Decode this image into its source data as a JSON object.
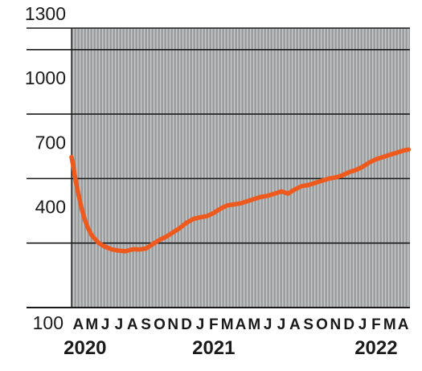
{
  "chart_data": {
    "type": "line",
    "title": "",
    "xlabel": "",
    "ylabel": "",
    "ylim": [
      100,
      1400
    ],
    "yticks": [
      100,
      400,
      700,
      1000,
      1300
    ],
    "grid": true,
    "background_color": "#9a9c9e",
    "vertical_stripe_color": "#c9cbcd",
    "line_color": "#ee5a1e",
    "month_labels": [
      "A",
      "M",
      "J",
      "J",
      "A",
      "S",
      "O",
      "N",
      "D",
      "J",
      "F",
      "M",
      "A",
      "M",
      "J",
      "J",
      "A",
      "S",
      "O",
      "N",
      "D",
      "J",
      "F",
      "M",
      "A"
    ],
    "year_labels": [
      {
        "text": "2020",
        "month_index": 0.5
      },
      {
        "text": "2021",
        "month_index": 10
      },
      {
        "text": "2022",
        "month_index": 22
      }
    ],
    "series": [
      {
        "x": [
          0,
          0.15,
          0.3,
          0.5,
          0.75,
          1,
          1.25,
          1.5,
          2,
          2.5,
          3,
          3.5,
          4,
          4.3,
          4.6,
          5,
          5.5,
          6,
          6.5,
          7,
          7.5,
          8,
          8.5,
          9,
          9.5,
          10,
          10.5,
          11,
          11.5,
          12,
          12.5,
          13,
          13.5,
          14,
          14.5,
          15,
          15.5,
          16,
          16.5,
          17,
          17.5,
          18,
          18.5,
          19,
          19.5,
          20,
          20.5,
          21,
          21.5,
          22,
          22.5,
          23,
          23.5,
          24,
          24.5,
          24.9
        ],
        "values": [
          800,
          750,
          690,
          630,
          560,
          505,
          465,
          435,
          400,
          382,
          370,
          365,
          362,
          368,
          372,
          370,
          375,
          395,
          415,
          430,
          450,
          470,
          495,
          512,
          520,
          525,
          540,
          560,
          575,
          580,
          585,
          595,
          605,
          615,
          620,
          630,
          640,
          630,
          650,
          665,
          670,
          680,
          690,
          700,
          705,
          715,
          730,
          740,
          755,
          775,
          790,
          800,
          810,
          820,
          830,
          835
        ]
      }
    ]
  }
}
